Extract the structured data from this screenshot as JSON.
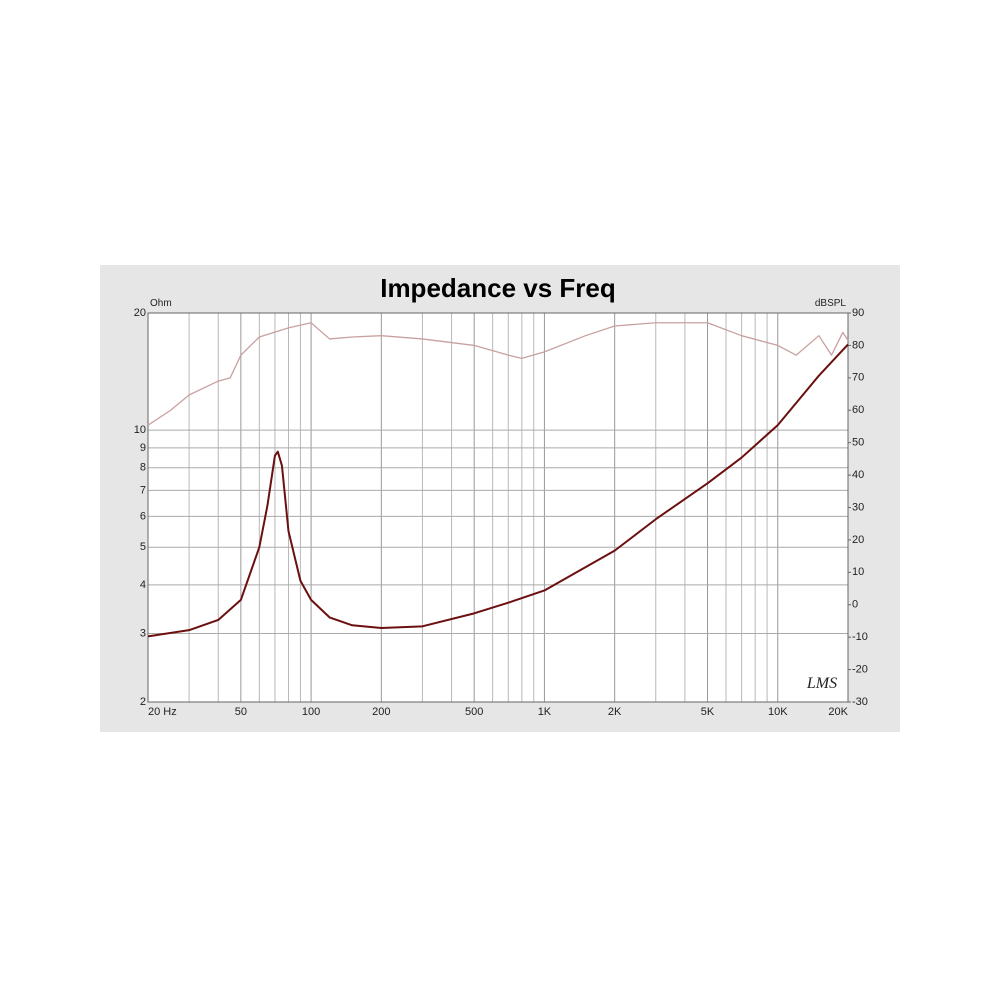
{
  "chart_data": {
    "type": "line",
    "title": "Impedance vs Freq",
    "y_label": "Ohm",
    "y2_label": "dBSPL",
    "annotation": "LMS",
    "xscale": "log",
    "yscale": "log",
    "grid": true,
    "xlim": [
      20,
      20000
    ],
    "ylim": [
      2,
      20
    ],
    "y2lim": [
      -30,
      90
    ],
    "xticks": [
      {
        "value": 20,
        "label": "20 Hz"
      },
      50,
      100,
      200,
      500,
      {
        "value": 1000,
        "label": "1K"
      },
      {
        "value": 2000,
        "label": "2K"
      },
      {
        "value": 5000,
        "label": "5K"
      },
      {
        "value": 10000,
        "label": "10K"
      },
      {
        "value": 20000,
        "label": "20K"
      }
    ],
    "x_minor_ticks": [
      30,
      40,
      60,
      70,
      80,
      90,
      300,
      400,
      600,
      700,
      800,
      900,
      3000,
      4000,
      6000,
      7000,
      8000,
      9000
    ],
    "yticks": [
      2,
      3,
      4,
      5,
      6,
      7,
      8,
      9,
      10,
      20
    ],
    "y2ticks": [
      -30,
      -20,
      -10,
      0,
      10,
      20,
      30,
      40,
      50,
      60,
      70,
      80,
      90
    ],
    "series": [
      {
        "name": "Impedance",
        "color": "#6b0f0f",
        "x": [
          20,
          30,
          40,
          50,
          60,
          65,
          70,
          72,
          75,
          80,
          90,
          100,
          120,
          150,
          200,
          300,
          500,
          700,
          1000,
          2000,
          3000,
          5000,
          7000,
          10000,
          15000,
          20000
        ],
        "values": [
          2.95,
          3.06,
          3.25,
          3.66,
          5.0,
          6.4,
          8.6,
          8.8,
          8.1,
          5.5,
          4.1,
          3.66,
          3.3,
          3.15,
          3.1,
          3.13,
          3.38,
          3.6,
          3.87,
          4.9,
          5.9,
          7.3,
          8.5,
          10.3,
          13.8,
          16.6
        ]
      },
      {
        "name": "SPL",
        "color": "#c9a0a0",
        "axis": "y2",
        "x": [
          20,
          25,
          30,
          40,
          45,
          50,
          60,
          80,
          100,
          120,
          150,
          200,
          300,
          500,
          700,
          800,
          1000,
          1500,
          2000,
          3000,
          5000,
          7000,
          10000,
          12000,
          15000,
          17000,
          19000,
          20000
        ],
        "values": [
          55.4,
          60,
          64.7,
          69,
          70,
          77,
          82.6,
          85.4,
          87,
          82,
          82.6,
          83,
          82,
          80,
          77,
          76,
          78,
          83,
          86,
          87,
          87,
          83,
          80,
          77,
          83,
          77,
          84,
          81.6
        ]
      }
    ]
  }
}
